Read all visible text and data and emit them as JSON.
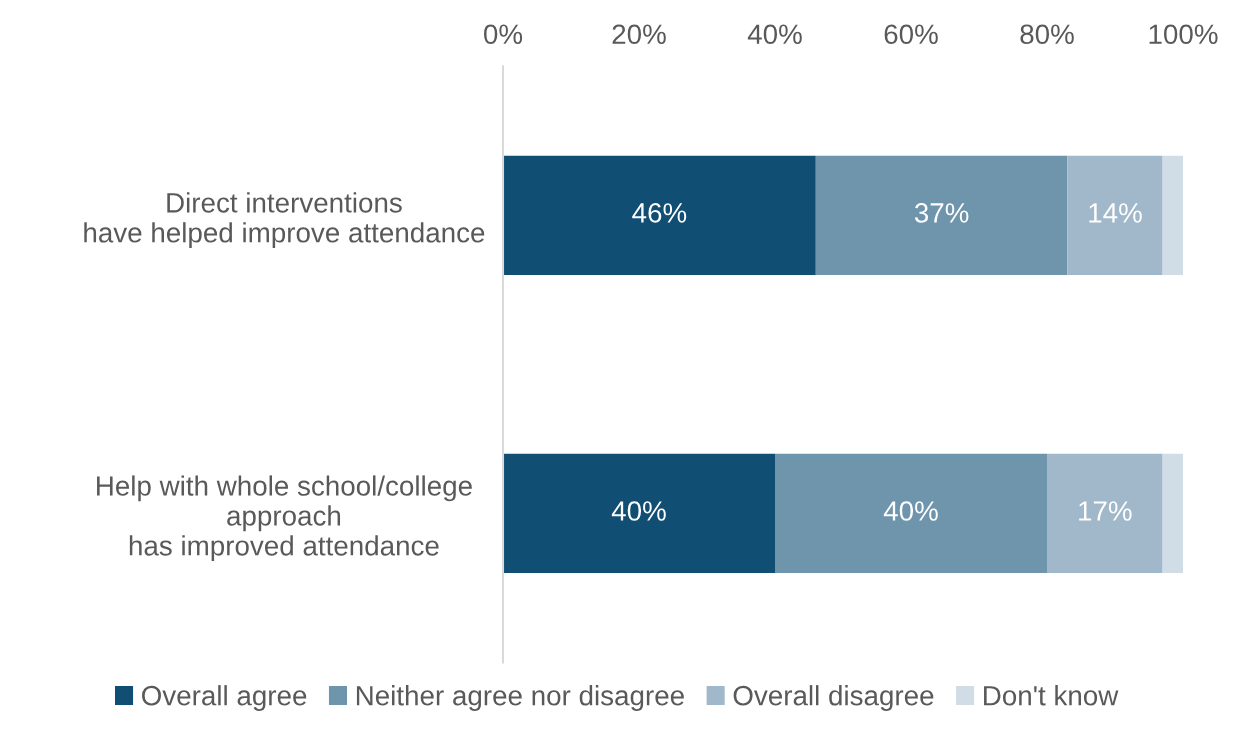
{
  "chart_data": {
    "type": "bar",
    "orientation": "horizontal",
    "stacked": true,
    "categories": [
      "Direct interventions\nhave helped improve attendance",
      "Help with whole school/college\napproach\nhas improved attendance"
    ],
    "series": [
      {
        "name": "Overall agree",
        "color": "#104e74",
        "values": [
          46,
          40
        ],
        "value_labels": [
          "46%",
          "40%"
        ]
      },
      {
        "name": "Neither agree nor disagree",
        "color": "#6f95ad",
        "values": [
          37,
          40
        ],
        "value_labels": [
          "37%",
          "40%"
        ]
      },
      {
        "name": "Overall disagree",
        "color": "#a0b8c9",
        "values": [
          14,
          17
        ],
        "value_labels": [
          "14%",
          "17%"
        ]
      },
      {
        "name": "Don't know",
        "color": "#d0dde6",
        "values": [
          3,
          3
        ],
        "value_labels": [
          null,
          null
        ]
      }
    ],
    "xlim": [
      0,
      100
    ],
    "xticks": [
      {
        "value": 0,
        "label": "0%"
      },
      {
        "value": 20,
        "label": "20%"
      },
      {
        "value": 40,
        "label": "40%"
      },
      {
        "value": 60,
        "label": "60%"
      },
      {
        "value": 80,
        "label": "80%"
      },
      {
        "value": 100,
        "label": "100%"
      }
    ],
    "grid": false,
    "legend": "bottom"
  }
}
